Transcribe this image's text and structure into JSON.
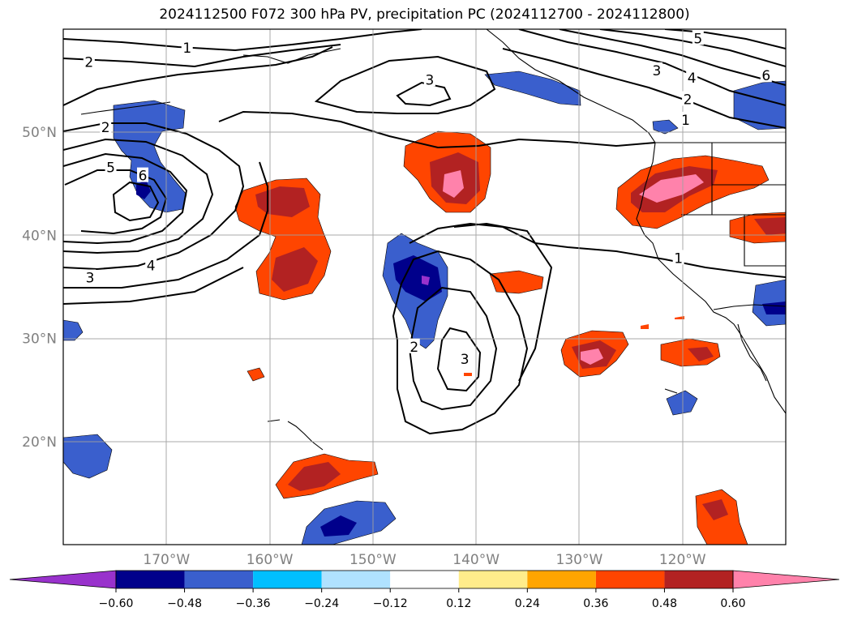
{
  "title": "2024112500 F072 300 hPa PV, precipitation PC (2024112700 - 2024112800)",
  "map": {
    "extent": {
      "lon_min": -180,
      "lon_max": -110,
      "lat_min": 10,
      "lat_max": 60
    },
    "lat_ticks": [
      {
        "value": 50,
        "label": "50°N"
      },
      {
        "value": 40,
        "label": "40°N"
      },
      {
        "value": 30,
        "label": "30°N"
      },
      {
        "value": 20,
        "label": "20°N"
      }
    ],
    "lon_ticks": [
      {
        "value": -170,
        "label": "170°W"
      },
      {
        "value": -160,
        "label": "160°W"
      },
      {
        "value": -150,
        "label": "150°W"
      },
      {
        "value": -140,
        "label": "140°W"
      },
      {
        "value": -130,
        "label": "130°W"
      },
      {
        "value": -120,
        "label": "120°W"
      }
    ],
    "grid": true,
    "coastline_color": "#000000",
    "contour_color": "#000000"
  },
  "pv_contour_labels": [
    {
      "text": "1",
      "lon": -168,
      "lat": 58.2
    },
    {
      "text": "2",
      "lon": -177.5,
      "lat": 56.8
    },
    {
      "text": "3",
      "lon": -144.5,
      "lat": 55.1
    },
    {
      "text": "5",
      "lon": -118.5,
      "lat": 59.1
    },
    {
      "text": "3",
      "lon": -122.5,
      "lat": 56.0
    },
    {
      "text": "4",
      "lon": -119.1,
      "lat": 55.3
    },
    {
      "text": "2",
      "lon": -119.5,
      "lat": 53.2
    },
    {
      "text": "1",
      "lon": -119.7,
      "lat": 51.2
    },
    {
      "text": "6",
      "lon": -111.9,
      "lat": 55.5
    },
    {
      "text": "2",
      "lon": -175.9,
      "lat": 50.5
    },
    {
      "text": "5",
      "lon": -175.4,
      "lat": 46.6
    },
    {
      "text": "6",
      "lon": -172.3,
      "lat": 45.8
    },
    {
      "text": "4",
      "lon": -171.5,
      "lat": 37.1
    },
    {
      "text": "3",
      "lon": -177.4,
      "lat": 35.9
    },
    {
      "text": "1",
      "lon": -120.4,
      "lat": 37.8
    },
    {
      "text": "2",
      "lon": -146.0,
      "lat": 29.2
    },
    {
      "text": "3",
      "lon": -141.1,
      "lat": 28.0
    }
  ],
  "colorbar": {
    "levels": [
      -0.6,
      -0.48,
      -0.36,
      -0.24,
      -0.12,
      0.12,
      0.24,
      0.36,
      0.48,
      0.6
    ],
    "labels": [
      "−0.60",
      "−0.48",
      "−0.36",
      "−0.24",
      "−0.12",
      "0.12",
      "0.24",
      "0.36",
      "0.48",
      "0.60"
    ],
    "colors": {
      "under": "#9932cc",
      "bins": [
        "#00008b",
        "#3a5fcd",
        "#00bfff",
        "#b0e2ff",
        "#ffffff",
        "#ffec8b",
        "#ffa500",
        "#ff4500",
        "#b22222"
      ],
      "over": "#ff82ab"
    }
  }
}
